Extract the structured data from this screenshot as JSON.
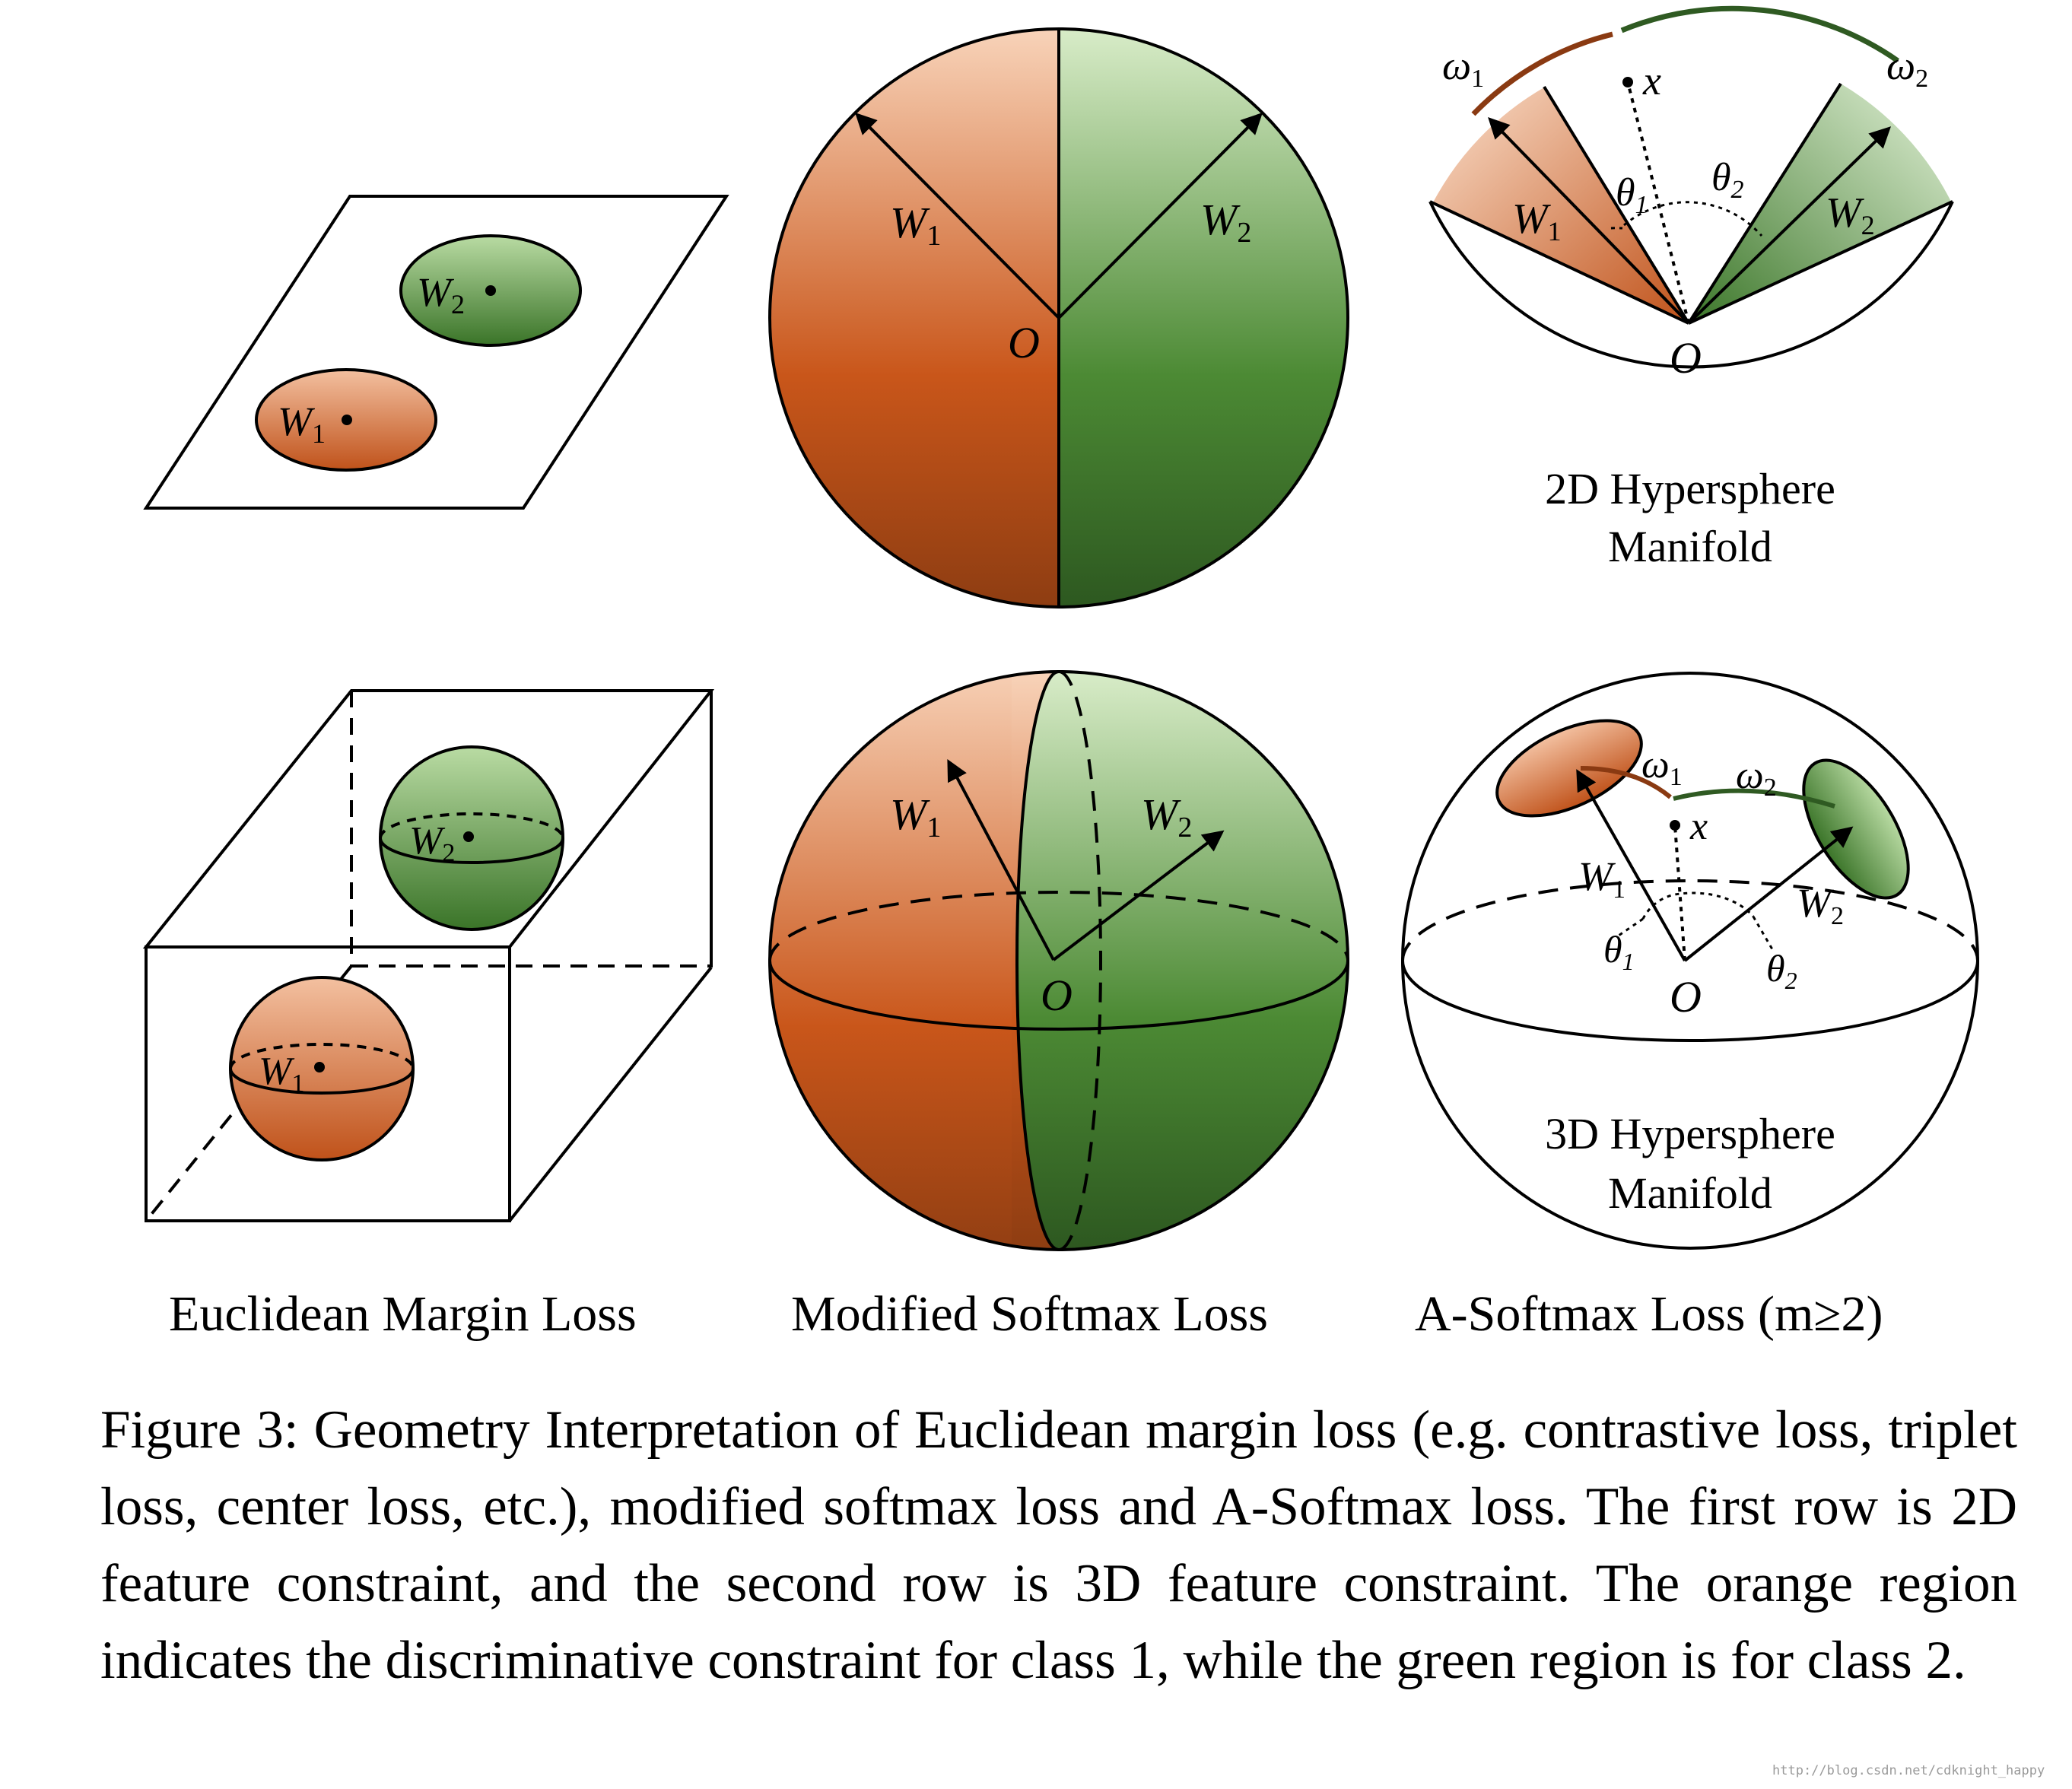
{
  "labels": {
    "w1": "W",
    "w2": "W",
    "sub1": "1",
    "sub2": "2",
    "origin": "O",
    "x": "x",
    "theta": "θ",
    "omega": "ω"
  },
  "manifold_2d": [
    "2D Hypersphere",
    "Manifold"
  ],
  "manifold_3d": [
    "3D Hypersphere",
    "Manifold"
  ],
  "panel_titles": {
    "euclidean": "Euclidean Margin Loss",
    "modified": "Modified Softmax Loss",
    "asoftmax": "A-Softmax Loss (m≥2)"
  },
  "caption": "Figure 3: Geometry Interpretation of Euclidean margin loss (e.g. contrastive loss, triplet loss, center loss, etc.), modified softmax loss and A-Softmax loss. The first row is 2D feature constraint, and the second row is 3D feature constraint. The orange region indicates the discriminative constraint for class 1, while the green region is for class 2.",
  "watermark": "http://blog.csdn.net/cdknight_happy",
  "colors": {
    "orange": "#c9561a",
    "green": "#3f7a2c",
    "arc_orange": "#8a3a12",
    "arc_green": "#2f5a22"
  }
}
